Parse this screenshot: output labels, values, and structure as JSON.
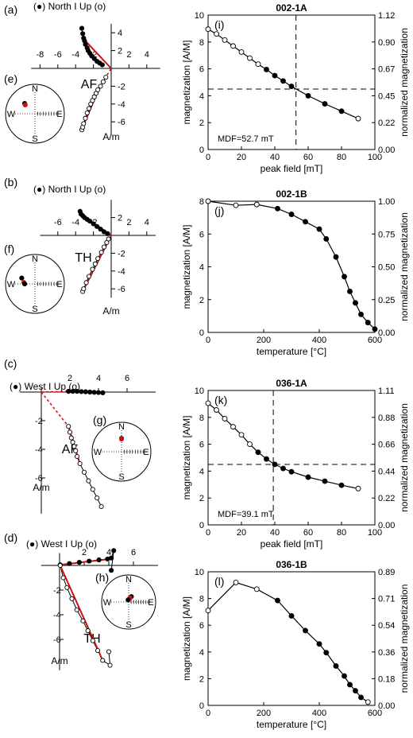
{
  "chart_data": [
    {
      "type": "scatter",
      "panel": "(a)",
      "legend": "(●) North I Up (o)",
      "unit": "A/m",
      "method": "AF",
      "x_ticks": [
        "-8",
        "-6",
        "-4",
        "-2",
        "2",
        "4"
      ],
      "y_ticks": [
        "4",
        "2",
        "-2",
        "-4",
        "-6"
      ],
      "xlim": [
        -9,
        5.5
      ],
      "ylim": [
        -7.5,
        5
      ],
      "horizontal": [
        [
          -3.3,
          4.5
        ],
        [
          -3.2,
          3.9
        ],
        [
          -3.1,
          3.4
        ],
        [
          -3.0,
          3.1
        ],
        [
          -2.9,
          2.7
        ],
        [
          -2.7,
          2.3
        ],
        [
          -2.6,
          2.0
        ],
        [
          -2.4,
          1.7
        ],
        [
          -2.2,
          1.4
        ],
        [
          -1.9,
          1.1
        ],
        [
          -1.6,
          0.8
        ],
        [
          -1.3,
          0.6
        ],
        [
          -1.0,
          0.4
        ]
      ],
      "vertical": [
        [
          -3.3,
          -6.9
        ],
        [
          -3.2,
          -6.6
        ],
        [
          -3.1,
          -6.2
        ],
        [
          -2.9,
          -5.6
        ],
        [
          -2.7,
          -5.0
        ],
        [
          -2.5,
          -4.5
        ],
        [
          -2.3,
          -4.0
        ],
        [
          -2.1,
          -3.6
        ],
        [
          -1.9,
          -3.2
        ],
        [
          -1.7,
          -2.8
        ],
        [
          -1.5,
          -2.4
        ],
        [
          -1.2,
          -2.0
        ],
        [
          -0.9,
          -1.5
        ],
        [
          -0.6,
          -1.0
        ]
      ],
      "fit_horizontal": [
        [
          -3.0,
          3.2
        ],
        [
          0,
          0
        ]
      ],
      "fit_vertical": [
        [
          -3.2,
          -6.6
        ],
        [
          -1.3,
          -2.1
        ]
      ],
      "fit_dashed": [
        [
          -1.3,
          -2.1
        ],
        [
          0,
          0
        ]
      ],
      "stereonet": {
        "panel": "(e)",
        "N": "N",
        "S": "S",
        "W": "W",
        "E": "E",
        "points": [
          {
            "x": -0.35,
            "y": 0.35,
            "fill": "#000"
          },
          {
            "x": -0.33,
            "y": 0.3,
            "fill": "#d01010"
          }
        ]
      }
    },
    {
      "type": "scatter",
      "panel": "(b)",
      "legend": "(●) North I Up (o)",
      "unit": "A/m",
      "method": "TH",
      "x_ticks": [
        "-6",
        "-4",
        "-2",
        "2",
        "4"
      ],
      "y_ticks": [
        "2",
        "-2",
        "-4",
        "-6"
      ],
      "xlim": [
        -8,
        5
      ],
      "ylim": [
        -7,
        4
      ],
      "horizontal": [
        [
          -3.5,
          2.7
        ],
        [
          -3.4,
          2.4
        ],
        [
          -3.2,
          2.2
        ],
        [
          -3.0,
          2.0
        ],
        [
          -2.7,
          1.8
        ],
        [
          -2.4,
          1.6
        ],
        [
          -2.0,
          1.3
        ],
        [
          -1.6,
          1.0
        ],
        [
          -1.2,
          0.7
        ],
        [
          -0.8,
          0.4
        ],
        [
          -0.4,
          0.2
        ]
      ],
      "vertical": [
        [
          -3.2,
          -6.3
        ],
        [
          -3.1,
          -6.0
        ],
        [
          -2.8,
          -5.3
        ],
        [
          -2.5,
          -4.6
        ],
        [
          -2.1,
          -3.8
        ],
        [
          -1.8,
          -3.2
        ],
        [
          -1.5,
          -2.6
        ],
        [
          -1.1,
          -1.9
        ],
        [
          -0.8,
          -1.3
        ],
        [
          -0.5,
          -0.8
        ],
        [
          -0.3,
          -0.4
        ]
      ],
      "fit_horizontal": [
        [
          -3.4,
          2.4
        ],
        [
          0,
          0
        ]
      ],
      "fit_vertical": [
        [
          -3.2,
          -6.3
        ],
        [
          0,
          0
        ]
      ],
      "stereonet": {
        "panel": "(f)",
        "N": "N",
        "S": "S",
        "W": "W",
        "E": "E",
        "points": [
          {
            "x": -0.45,
            "y": 0.2,
            "fill": "#000"
          },
          {
            "x": -0.38,
            "y": 0.05,
            "fill": "#d01010"
          },
          {
            "x": -0.35,
            "y": 0.0,
            "fill": "#000"
          }
        ]
      }
    },
    {
      "type": "scatter",
      "panel": "(c)",
      "legend": "(●) West I Up (o)",
      "unit": "A/m",
      "method": "AF",
      "x_ticks": [
        "2",
        "4",
        "6"
      ],
      "y_ticks": [
        "-2",
        "-4",
        "-6"
      ],
      "xlim": [
        -1.5,
        8
      ],
      "ylim": [
        -8.5,
        0.3
      ],
      "horizontal": [
        [
          1.9,
          0.05
        ],
        [
          2.2,
          0.05
        ],
        [
          2.5,
          0.05
        ],
        [
          2.8,
          0.03
        ],
        [
          3.1,
          0.02
        ],
        [
          3.4,
          0.0
        ],
        [
          3.7,
          -0.02
        ],
        [
          4.0,
          -0.03
        ],
        [
          4.3,
          -0.05
        ]
      ],
      "vertical": [
        [
          1.9,
          -2.4
        ],
        [
          2.0,
          -2.8
        ],
        [
          2.1,
          -3.2
        ],
        [
          2.2,
          -3.5
        ],
        [
          2.3,
          -3.8
        ],
        [
          2.4,
          -4.1
        ],
        [
          2.5,
          -4.5
        ],
        [
          2.7,
          -5.0
        ],
        [
          3.0,
          -5.6
        ],
        [
          3.3,
          -6.2
        ],
        [
          3.6,
          -6.8
        ],
        [
          3.9,
          -7.4
        ],
        [
          4.2,
          -8.0
        ]
      ],
      "fit_horizontal": [
        [
          1.9,
          0.05
        ],
        [
          3.6,
          0.0
        ]
      ],
      "fit_vertical": [
        [
          1.9,
          -2.4
        ],
        [
          2.7,
          -5.0
        ]
      ],
      "fit_dashed": [
        [
          0,
          0
        ],
        [
          1.9,
          -2.4
        ]
      ],
      "fit_dashed_h": [
        [
          0,
          0
        ],
        [
          1.9,
          0.05
        ]
      ],
      "stereonet": {
        "panel": "(g)",
        "N": "N",
        "S": "S",
        "W": "W",
        "E": "E",
        "points": [
          {
            "x": 0.0,
            "y": 0.45,
            "fill": "#000"
          },
          {
            "x": 0.0,
            "y": 0.43,
            "fill": "#d01010"
          }
        ]
      }
    },
    {
      "type": "scatter",
      "panel": "(d)",
      "legend": "(●) West I Up (o)",
      "unit": "A/m",
      "method": "TH",
      "x_ticks": [
        "2",
        "4",
        "6"
      ],
      "y_ticks": [
        "-2",
        "-4",
        "-6"
      ],
      "xlim": [
        -1.5,
        8
      ],
      "ylim": [
        -8.5,
        1
      ],
      "horizontal": [
        [
          0.05,
          0.05
        ],
        [
          0.8,
          0.15
        ],
        [
          1.6,
          0.25
        ],
        [
          2.4,
          0.35
        ],
        [
          3.2,
          0.45
        ],
        [
          3.9,
          0.52
        ],
        [
          4.2,
          0.6
        ],
        [
          4.4,
          1.2
        ],
        [
          4.2,
          -0.4
        ]
      ],
      "vertical": [
        [
          0.05,
          0.0
        ],
        [
          0.3,
          -1.0
        ],
        [
          0.6,
          -1.8
        ],
        [
          1.0,
          -2.7
        ],
        [
          1.4,
          -3.6
        ],
        [
          1.9,
          -4.5
        ],
        [
          2.3,
          -5.3
        ],
        [
          2.7,
          -6.1
        ],
        [
          3.1,
          -6.9
        ],
        [
          3.5,
          -7.7
        ],
        [
          4.1,
          -8.1
        ],
        [
          4.0,
          -7.0
        ]
      ],
      "fit_horizontal": [
        [
          0.05,
          0.05
        ],
        [
          3.9,
          0.5
        ]
      ],
      "fit_vertical": [
        [
          0.05,
          0.0
        ],
        [
          3.5,
          -7.7
        ]
      ],
      "stereonet": {
        "panel": "(h)",
        "N": "N",
        "S": "S",
        "W": "W",
        "E": "E",
        "points": [
          {
            "x": 0.1,
            "y": 0.2,
            "fill": "#000"
          },
          {
            "x": 0.05,
            "y": 0.15,
            "fill": "#d01010"
          },
          {
            "x": -0.02,
            "y": 0.08,
            "fill": "#000"
          }
        ]
      }
    },
    {
      "type": "line",
      "panel": "(i)",
      "title": "002-1A",
      "xlabel": "peak field [mT]",
      "ylabel": "magnetization [A/M]",
      "y2label": "normalized magnetization",
      "xlim": [
        0,
        100
      ],
      "ylim": [
        0,
        10
      ],
      "x_ticks": [
        0,
        20,
        40,
        60,
        80,
        100
      ],
      "y_ticks": [
        0,
        2,
        4,
        6,
        8,
        10
      ],
      "y2_ticks": [
        "0.00",
        "0.22",
        "0.45",
        "0.67",
        "0.90",
        "1.12"
      ],
      "x": [
        0,
        5,
        10,
        15,
        20,
        25,
        30,
        35,
        40,
        45,
        50,
        60,
        70,
        80,
        90
      ],
      "y": [
        8.95,
        8.6,
        8.15,
        7.7,
        7.25,
        6.8,
        6.35,
        5.95,
        5.5,
        5.1,
        4.7,
        4.0,
        3.4,
        2.85,
        2.3
      ],
      "filled": [
        false,
        false,
        false,
        false,
        false,
        false,
        false,
        true,
        true,
        true,
        true,
        true,
        true,
        true,
        false
      ],
      "vline": 52.7,
      "hline": 4.5,
      "annotation": "MDF=52.7 mT"
    },
    {
      "type": "line",
      "panel": "(j)",
      "title": "002-1B",
      "xlabel": "temperature [°C]",
      "ylabel": "magnetization [A/M]",
      "y2label": "normalized magnetization",
      "xlim": [
        0,
        600
      ],
      "ylim": [
        0,
        8
      ],
      "x_ticks": [
        0,
        200,
        400,
        600
      ],
      "y_ticks": [
        0,
        2,
        4,
        6,
        8
      ],
      "y2_ticks": [
        "0.00",
        "0.25",
        "0.50",
        "0.75",
        "1.00"
      ],
      "x": [
        0,
        100,
        175,
        250,
        300,
        350,
        400,
        425,
        460,
        490,
        510,
        530,
        550,
        575,
        600
      ],
      "y": [
        8.0,
        7.75,
        7.8,
        7.55,
        7.2,
        6.75,
        6.3,
        5.7,
        4.6,
        3.4,
        2.5,
        1.8,
        1.1,
        0.6,
        0.2
      ],
      "filled": [
        false,
        false,
        false,
        true,
        true,
        true,
        true,
        true,
        true,
        true,
        true,
        true,
        true,
        true,
        true
      ]
    },
    {
      "type": "line",
      "panel": "(k)",
      "title": "036-1A",
      "xlabel": "peak field [mT]",
      "ylabel": "magnetization [A/M]",
      "y2label": "normalized magnetization",
      "xlim": [
        0,
        100
      ],
      "ylim": [
        0,
        10
      ],
      "x_ticks": [
        0,
        20,
        40,
        60,
        80,
        100
      ],
      "y_ticks": [
        0,
        2,
        4,
        6,
        8,
        10
      ],
      "y2_ticks": [
        "0.00",
        "0.22",
        "0.44",
        "0.66",
        "0.88",
        "1.11"
      ],
      "x": [
        0,
        5,
        10,
        15,
        20,
        25,
        30,
        35,
        40,
        45,
        50,
        60,
        70,
        80,
        90
      ],
      "y": [
        9.05,
        8.55,
        7.9,
        7.3,
        6.7,
        6.0,
        5.4,
        4.9,
        4.5,
        4.2,
        3.95,
        3.55,
        3.25,
        2.95,
        2.7
      ],
      "filled": [
        false,
        false,
        false,
        false,
        false,
        false,
        true,
        true,
        true,
        true,
        true,
        true,
        true,
        true,
        false
      ],
      "vline": 39.1,
      "hline": 4.5,
      "annotation": "MDF=39.1 mT"
    },
    {
      "type": "line",
      "panel": "(l)",
      "title": "036-1B",
      "xlabel": "temperature [°C]",
      "ylabel": "magnetization [A/M]",
      "y2label": "normalized magnetization",
      "xlim": [
        0,
        600
      ],
      "ylim": [
        0,
        10
      ],
      "x_ticks": [
        0,
        200,
        400,
        600
      ],
      "y_ticks": [
        0,
        2,
        4,
        6,
        8,
        10
      ],
      "y2_ticks": [
        "0.00",
        "0.18",
        "0.36",
        "0.54",
        "0.71",
        "0.89"
      ],
      "x": [
        0,
        100,
        175,
        250,
        300,
        350,
        400,
        425,
        460,
        490,
        510,
        530,
        550,
        575
      ],
      "y": [
        7.1,
        9.2,
        8.7,
        7.85,
        6.7,
        5.6,
        4.6,
        3.95,
        2.95,
        2.2,
        1.55,
        1.1,
        0.6,
        0.25
      ],
      "filled": [
        false,
        false,
        false,
        true,
        true,
        true,
        true,
        true,
        true,
        true,
        true,
        true,
        true,
        false
      ]
    }
  ]
}
